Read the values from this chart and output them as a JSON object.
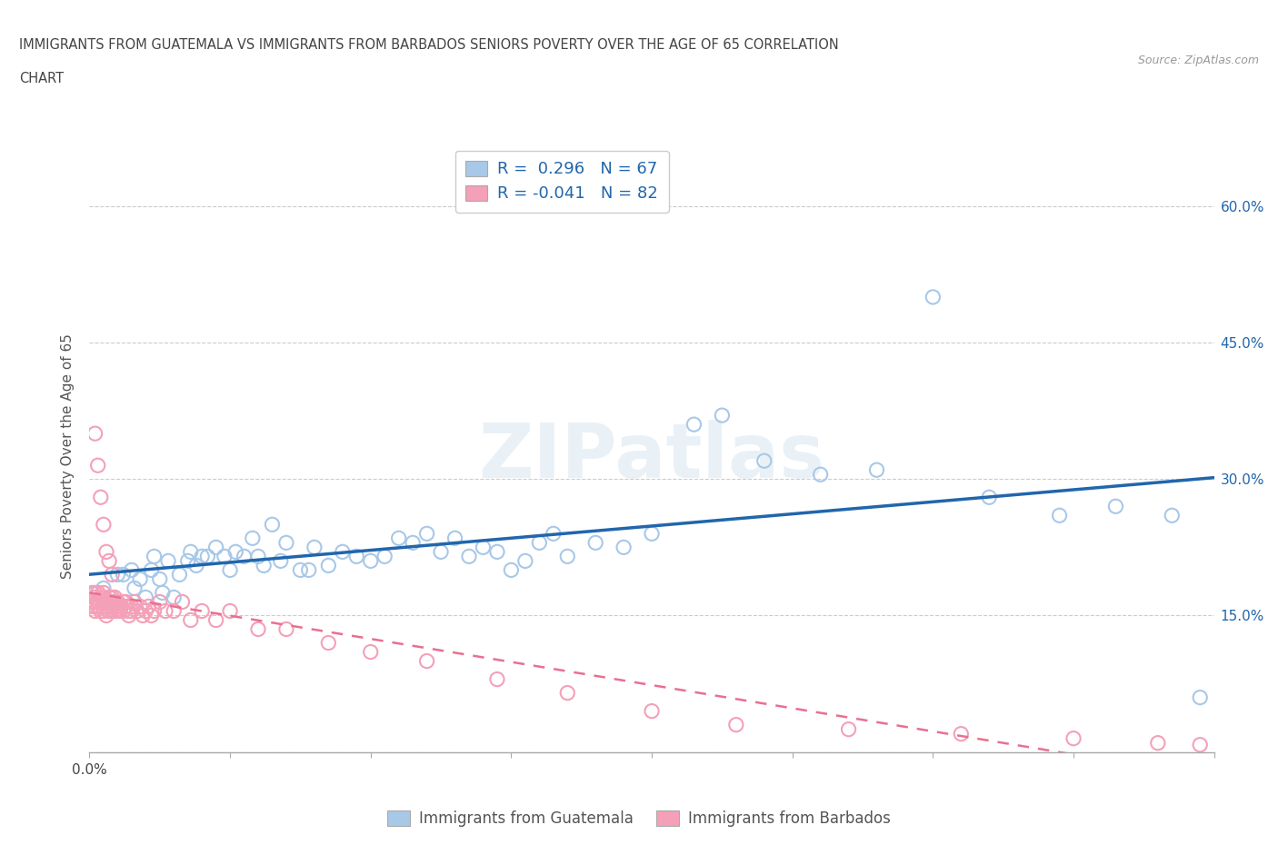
{
  "title_line1": "IMMIGRANTS FROM GUATEMALA VS IMMIGRANTS FROM BARBADOS SENIORS POVERTY OVER THE AGE OF 65 CORRELATION",
  "title_line2": "CHART",
  "source_text": "Source: ZipAtlas.com",
  "ylabel": "Seniors Poverty Over the Age of 65",
  "xlim": [
    0.0,
    0.4
  ],
  "ylim": [
    0.0,
    0.65
  ],
  "xtick_positions": [
    0.0,
    0.05,
    0.1,
    0.15,
    0.2,
    0.25,
    0.3,
    0.35,
    0.4
  ],
  "xticklabels_show": {
    "0.0": "0.0%"
  },
  "ytick_positions": [
    0.0,
    0.15,
    0.3,
    0.45,
    0.6
  ],
  "ytick_labels": [
    "",
    "15.0%",
    "30.0%",
    "45.0%",
    "60.0%"
  ],
  "R_blue": 0.296,
  "N_blue": 67,
  "R_pink": -0.041,
  "N_pink": 82,
  "color_blue_scatter": "#a8c8e8",
  "color_pink_scatter": "#f4a0b8",
  "color_blue_line": "#2166ac",
  "color_pink_line": "#e87090",
  "watermark_text": "ZIPatlas",
  "legend_label_blue": "Immigrants from Guatemala",
  "legend_label_pink": "Immigrants from Barbados",
  "blue_scatter_x": [
    0.003,
    0.005,
    0.008,
    0.01,
    0.012,
    0.015,
    0.016,
    0.018,
    0.02,
    0.022,
    0.023,
    0.025,
    0.026,
    0.028,
    0.03,
    0.032,
    0.035,
    0.036,
    0.038,
    0.04,
    0.042,
    0.045,
    0.048,
    0.05,
    0.052,
    0.055,
    0.058,
    0.06,
    0.062,
    0.065,
    0.068,
    0.07,
    0.075,
    0.078,
    0.08,
    0.085,
    0.09,
    0.095,
    0.1,
    0.105,
    0.11,
    0.115,
    0.12,
    0.125,
    0.13,
    0.135,
    0.14,
    0.145,
    0.15,
    0.155,
    0.16,
    0.165,
    0.17,
    0.18,
    0.19,
    0.2,
    0.215,
    0.225,
    0.24,
    0.26,
    0.28,
    0.3,
    0.32,
    0.345,
    0.365,
    0.385,
    0.395
  ],
  "blue_scatter_y": [
    0.175,
    0.18,
    0.165,
    0.195,
    0.195,
    0.2,
    0.18,
    0.19,
    0.17,
    0.2,
    0.215,
    0.19,
    0.175,
    0.21,
    0.17,
    0.195,
    0.21,
    0.22,
    0.205,
    0.215,
    0.215,
    0.225,
    0.215,
    0.2,
    0.22,
    0.215,
    0.235,
    0.215,
    0.205,
    0.25,
    0.21,
    0.23,
    0.2,
    0.2,
    0.225,
    0.205,
    0.22,
    0.215,
    0.21,
    0.215,
    0.235,
    0.23,
    0.24,
    0.22,
    0.235,
    0.215,
    0.225,
    0.22,
    0.2,
    0.21,
    0.23,
    0.24,
    0.215,
    0.23,
    0.225,
    0.24,
    0.36,
    0.37,
    0.32,
    0.305,
    0.31,
    0.5,
    0.28,
    0.26,
    0.27,
    0.26,
    0.06
  ],
  "pink_scatter_x": [
    0.001,
    0.001,
    0.001,
    0.002,
    0.002,
    0.002,
    0.002,
    0.003,
    0.003,
    0.003,
    0.003,
    0.004,
    0.004,
    0.004,
    0.004,
    0.005,
    0.005,
    0.005,
    0.005,
    0.006,
    0.006,
    0.006,
    0.007,
    0.007,
    0.007,
    0.007,
    0.008,
    0.008,
    0.008,
    0.009,
    0.009,
    0.009,
    0.01,
    0.01,
    0.01,
    0.011,
    0.011,
    0.012,
    0.012,
    0.013,
    0.013,
    0.014,
    0.014,
    0.015,
    0.015,
    0.016,
    0.017,
    0.018,
    0.019,
    0.02,
    0.021,
    0.022,
    0.023,
    0.025,
    0.027,
    0.03,
    0.033,
    0.036,
    0.04,
    0.045,
    0.05,
    0.06,
    0.07,
    0.085,
    0.1,
    0.12,
    0.145,
    0.17,
    0.2,
    0.23,
    0.27,
    0.31,
    0.35,
    0.38,
    0.395,
    0.002,
    0.003,
    0.004,
    0.005,
    0.006,
    0.007,
    0.008
  ],
  "pink_scatter_y": [
    0.175,
    0.165,
    0.16,
    0.155,
    0.16,
    0.17,
    0.175,
    0.165,
    0.175,
    0.165,
    0.16,
    0.155,
    0.165,
    0.17,
    0.155,
    0.155,
    0.165,
    0.17,
    0.175,
    0.16,
    0.15,
    0.165,
    0.155,
    0.165,
    0.17,
    0.155,
    0.16,
    0.17,
    0.155,
    0.165,
    0.155,
    0.17,
    0.16,
    0.155,
    0.165,
    0.16,
    0.155,
    0.165,
    0.155,
    0.16,
    0.165,
    0.15,
    0.155,
    0.16,
    0.155,
    0.165,
    0.155,
    0.16,
    0.15,
    0.155,
    0.16,
    0.15,
    0.155,
    0.165,
    0.155,
    0.155,
    0.165,
    0.145,
    0.155,
    0.145,
    0.155,
    0.135,
    0.135,
    0.12,
    0.11,
    0.1,
    0.08,
    0.065,
    0.045,
    0.03,
    0.025,
    0.02,
    0.015,
    0.01,
    0.008,
    0.35,
    0.315,
    0.28,
    0.25,
    0.22,
    0.21,
    0.195
  ],
  "grid_color": "#cccccc",
  "bg_color": "#ffffff"
}
